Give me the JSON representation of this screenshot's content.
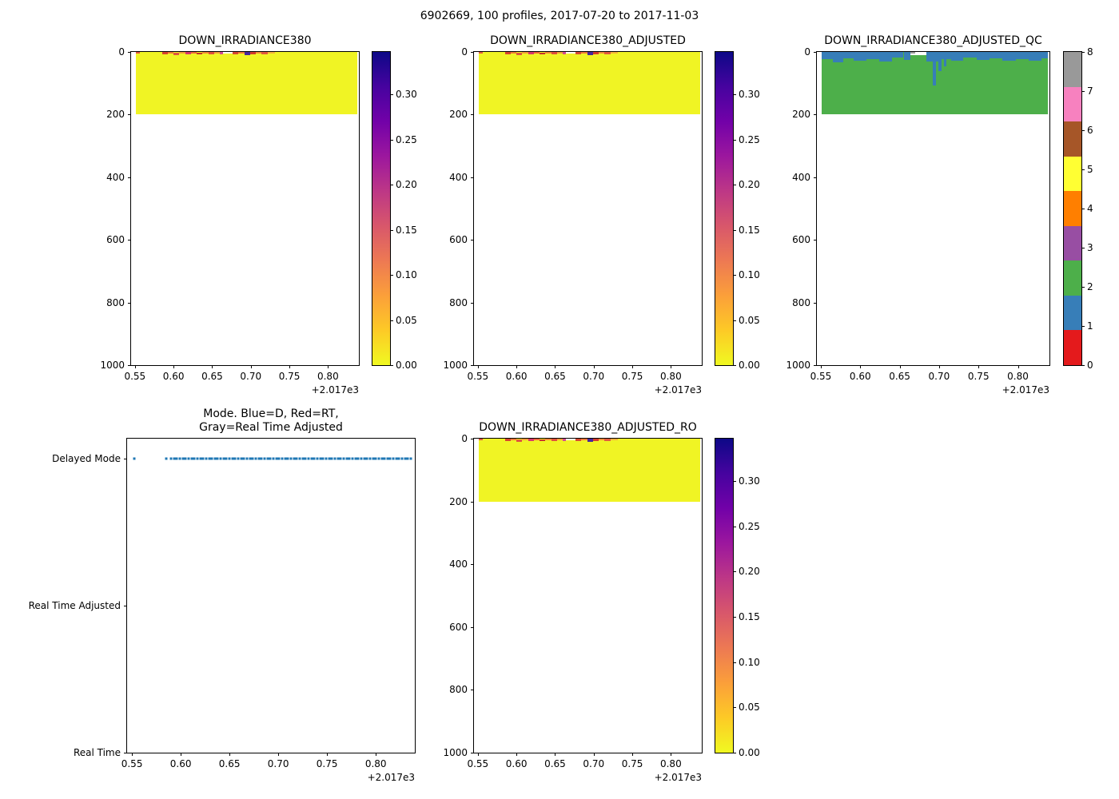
{
  "figure": {
    "title": "6902669, 100 profiles, 2017-07-20 to 2017-11-03"
  },
  "chart_data": [
    {
      "id": "down_irradiance380",
      "type": "heatmap",
      "title": "DOWN_IRRADIANCE380",
      "x": {
        "lim": [
          0.545,
          0.84
        ],
        "ticks": [
          0.55,
          0.6,
          0.65,
          0.7,
          0.75,
          0.8
        ],
        "tick_labels": [
          "0.55",
          "0.60",
          "0.65",
          "0.70",
          "0.75",
          "0.80"
        ],
        "offset": "+2.017e3"
      },
      "y": {
        "lim": [
          0,
          1000
        ],
        "ticks": [
          0,
          200,
          400,
          600,
          800,
          1000
        ],
        "tick_labels": [
          "0",
          "200",
          "400",
          "600",
          "800",
          "1000"
        ],
        "inverted": true
      },
      "layers": [
        [
          0.551,
          0.838,
          0,
          200,
          "#f0f424"
        ],
        [
          0.551,
          0.556,
          0,
          5,
          "#e4583f"
        ],
        [
          0.5855,
          0.5925,
          1,
          8,
          "#d7452f"
        ],
        [
          0.5925,
          0.6,
          0,
          6,
          "#f07d36"
        ],
        [
          0.6,
          0.6075,
          2,
          9,
          "#e05540"
        ],
        [
          0.6075,
          0.615,
          0,
          5,
          "#f4a03a"
        ],
        [
          0.615,
          0.6225,
          1,
          8,
          "#d8386b"
        ],
        [
          0.6225,
          0.63,
          0,
          6,
          "#ef6a3c"
        ],
        [
          0.63,
          0.6375,
          2,
          8,
          "#c9342a"
        ],
        [
          0.6375,
          0.645,
          0,
          5,
          "#f28c3a"
        ],
        [
          0.645,
          0.6525,
          1,
          8,
          "#e0513d"
        ],
        [
          0.6525,
          0.66,
          0,
          6,
          "#f0a23c"
        ],
        [
          0.66,
          0.664,
          1,
          7,
          "#d44c90"
        ],
        [
          0.664,
          0.6765,
          0,
          6,
          "#ffffff"
        ],
        [
          0.6765,
          0.684,
          1,
          8,
          "#d74a32"
        ],
        [
          0.684,
          0.6915,
          0,
          6,
          "#ef7b39"
        ],
        [
          0.6915,
          0.699,
          0,
          10,
          "#46279b"
        ],
        [
          0.699,
          0.7065,
          1,
          8,
          "#d33b2c"
        ],
        [
          0.7065,
          0.714,
          0,
          6,
          "#f2903b"
        ],
        [
          0.714,
          0.7215,
          1,
          7,
          "#e25b3f"
        ],
        [
          0.7215,
          0.731,
          0,
          5,
          "#f6b33c"
        ]
      ],
      "colorbar": {
        "kind": "continuous",
        "vmin": 0,
        "vmax": 0.347,
        "ticks": [
          0.3,
          0.25,
          0.2,
          0.15,
          0.1,
          0.05,
          0
        ],
        "labels": [
          "0.30",
          "0.25",
          "0.20",
          "0.15",
          "0.10",
          "0.05",
          "0.00"
        ],
        "gradient": [
          "#0d0887",
          "#46039f",
          "#7201a8",
          "#9c179e",
          "#bd3786",
          "#d8576b",
          "#ed7953",
          "#fb9f3a",
          "#fdca26",
          "#f0f921"
        ]
      }
    },
    {
      "id": "down_irradiance380_adjusted",
      "type": "heatmap",
      "title": "DOWN_IRRADIANCE380_ADJUSTED",
      "x": {
        "lim": [
          0.545,
          0.84
        ],
        "ticks": [
          0.55,
          0.6,
          0.65,
          0.7,
          0.75,
          0.8
        ],
        "tick_labels": [
          "0.55",
          "0.60",
          "0.65",
          "0.70",
          "0.75",
          "0.80"
        ],
        "offset": "+2.017e3"
      },
      "y": {
        "lim": [
          0,
          1000
        ],
        "ticks": [
          0,
          200,
          400,
          600,
          800,
          1000
        ],
        "tick_labels": [
          "0",
          "200",
          "400",
          "600",
          "800",
          "1000"
        ],
        "inverted": true
      },
      "layers": [
        [
          0.551,
          0.838,
          0,
          200,
          "#f0f424"
        ],
        [
          0.551,
          0.556,
          0,
          5,
          "#e4583f"
        ],
        [
          0.5855,
          0.5925,
          1,
          8,
          "#d7452f"
        ],
        [
          0.5925,
          0.6,
          0,
          6,
          "#f07d36"
        ],
        [
          0.6,
          0.6075,
          2,
          9,
          "#e05540"
        ],
        [
          0.6075,
          0.615,
          0,
          5,
          "#f4a03a"
        ],
        [
          0.615,
          0.6225,
          1,
          8,
          "#d8386b"
        ],
        [
          0.6225,
          0.63,
          0,
          6,
          "#ef6a3c"
        ],
        [
          0.63,
          0.6375,
          2,
          8,
          "#c9342a"
        ],
        [
          0.6375,
          0.645,
          0,
          5,
          "#f28c3a"
        ],
        [
          0.645,
          0.6525,
          1,
          8,
          "#e0513d"
        ],
        [
          0.6525,
          0.66,
          0,
          6,
          "#f0a23c"
        ],
        [
          0.66,
          0.664,
          1,
          7,
          "#d44c90"
        ],
        [
          0.664,
          0.6765,
          0,
          6,
          "#ffffff"
        ],
        [
          0.6765,
          0.684,
          1,
          8,
          "#d74a32"
        ],
        [
          0.684,
          0.6915,
          0,
          6,
          "#ef7b39"
        ],
        [
          0.6915,
          0.699,
          0,
          10,
          "#46279b"
        ],
        [
          0.699,
          0.7065,
          1,
          8,
          "#d33b2c"
        ],
        [
          0.7065,
          0.714,
          0,
          6,
          "#f2903b"
        ],
        [
          0.714,
          0.7215,
          1,
          7,
          "#e25b3f"
        ],
        [
          0.7215,
          0.731,
          0,
          5,
          "#f6b33c"
        ]
      ],
      "colorbar": {
        "kind": "continuous",
        "vmin": 0,
        "vmax": 0.347,
        "ticks": [
          0.3,
          0.25,
          0.2,
          0.15,
          0.1,
          0.05,
          0
        ],
        "labels": [
          "0.30",
          "0.25",
          "0.20",
          "0.15",
          "0.10",
          "0.05",
          "0.00"
        ],
        "gradient": [
          "#0d0887",
          "#46039f",
          "#7201a8",
          "#9c179e",
          "#bd3786",
          "#d8576b",
          "#ed7953",
          "#fb9f3a",
          "#fdca26",
          "#f0f921"
        ]
      }
    },
    {
      "id": "down_irradiance380_adjusted_qc",
      "type": "heatmap",
      "title": "DOWN_IRRADIANCE380_ADJUSTED_QC",
      "x": {
        "lim": [
          0.545,
          0.84
        ],
        "ticks": [
          0.55,
          0.6,
          0.65,
          0.7,
          0.75,
          0.8
        ],
        "tick_labels": [
          "0.55",
          "0.60",
          "0.65",
          "0.70",
          "0.75",
          "0.80"
        ],
        "offset": "+2.017e3"
      },
      "y": {
        "lim": [
          0,
          1000
        ],
        "ticks": [
          0,
          200,
          400,
          600,
          800,
          1000
        ],
        "tick_labels": [
          "0",
          "200",
          "400",
          "600",
          "800",
          "1000"
        ],
        "inverted": true
      },
      "layers": [
        [
          0.551,
          0.838,
          0,
          200,
          "#4daf4a"
        ],
        [
          0.551,
          0.565,
          0,
          24,
          "#377eb8"
        ],
        [
          0.565,
          0.578,
          0,
          32,
          "#377eb8"
        ],
        [
          0.578,
          0.592,
          0,
          20,
          "#377eb8"
        ],
        [
          0.592,
          0.608,
          0,
          28,
          "#377eb8"
        ],
        [
          0.608,
          0.624,
          0,
          22,
          "#377eb8"
        ],
        [
          0.624,
          0.64,
          0,
          30,
          "#377eb8"
        ],
        [
          0.64,
          0.655,
          0,
          18,
          "#377eb8"
        ],
        [
          0.655,
          0.664,
          0,
          26,
          "#377eb8"
        ],
        [
          0.684,
          0.699,
          0,
          30,
          "#377eb8"
        ],
        [
          0.699,
          0.715,
          0,
          24,
          "#377eb8"
        ],
        [
          0.715,
          0.731,
          0,
          28,
          "#377eb8"
        ],
        [
          0.731,
          0.748,
          0,
          18,
          "#377eb8"
        ],
        [
          0.748,
          0.764,
          0,
          26,
          "#377eb8"
        ],
        [
          0.764,
          0.78,
          0,
          20,
          "#377eb8"
        ],
        [
          0.78,
          0.797,
          0,
          28,
          "#377eb8"
        ],
        [
          0.797,
          0.814,
          0,
          22,
          "#377eb8"
        ],
        [
          0.814,
          0.83,
          0,
          28,
          "#377eb8"
        ],
        [
          0.83,
          0.838,
          0,
          20,
          "#377eb8"
        ],
        [
          0.6915,
          0.6965,
          0,
          108,
          "#377eb8"
        ],
        [
          0.699,
          0.7035,
          0,
          62,
          "#377eb8"
        ],
        [
          0.706,
          0.709,
          0,
          46,
          "#377eb8"
        ],
        [
          0.664,
          0.684,
          0,
          10,
          "#ffffff"
        ],
        [
          0.664,
          0.67,
          0,
          4,
          "#9b9b9b"
        ]
      ],
      "colorbar": {
        "kind": "discrete",
        "vmin": 0,
        "vmax": 8,
        "colors": [
          "#e41a1c",
          "#377eb8",
          "#4daf4a",
          "#984ea3",
          "#ff7f00",
          "#ffff33",
          "#a65628",
          "#f781bf",
          "#999999"
        ],
        "ticks": [
          0,
          1,
          2,
          3,
          4,
          5,
          6,
          7,
          8
        ],
        "labels": [
          "0",
          "1",
          "2",
          "3",
          "4",
          "5",
          "6",
          "7",
          "8"
        ]
      }
    },
    {
      "id": "mode",
      "type": "scatter",
      "title_lines": [
        "Mode. Blue=D, Red=RT,",
        "Gray=Real Time Adjusted"
      ],
      "x": {
        "lim": [
          0.545,
          0.84
        ],
        "ticks": [
          0.55,
          0.6,
          0.65,
          0.7,
          0.75,
          0.8
        ],
        "tick_labels": [
          "0.55",
          "0.60",
          "0.65",
          "0.70",
          "0.75",
          "0.80"
        ],
        "offset": "+2.017e3"
      },
      "y": {
        "categories": [
          "Delayed Mode",
          "Real Time Adjusted",
          "Real Time"
        ],
        "fracs": [
          0.064,
          0.532,
          1.0
        ]
      },
      "series": [
        {
          "name": "Delayed Mode",
          "color": "#1f77b4",
          "y_frac": 0.064,
          "x_runs": [
            [
              0.552
            ],
            [
              0.5855
            ],
            [
              0.59,
              0.838,
              0.003
            ]
          ]
        }
      ]
    },
    {
      "id": "down_irradiance380_adjusted_ro",
      "type": "heatmap",
      "title": "DOWN_IRRADIANCE380_ADJUSTED_RO",
      "x": {
        "lim": [
          0.545,
          0.84
        ],
        "ticks": [
          0.55,
          0.6,
          0.65,
          0.7,
          0.75,
          0.8
        ],
        "tick_labels": [
          "0.55",
          "0.60",
          "0.65",
          "0.70",
          "0.75",
          "0.80"
        ],
        "offset": "+2.017e3"
      },
      "y": {
        "lim": [
          0,
          1000
        ],
        "ticks": [
          0,
          200,
          400,
          600,
          800,
          1000
        ],
        "tick_labels": [
          "0",
          "200",
          "400",
          "600",
          "800",
          "1000"
        ],
        "inverted": true
      },
      "layers": [
        [
          0.551,
          0.838,
          0,
          200,
          "#f0f424"
        ],
        [
          0.551,
          0.556,
          0,
          5,
          "#e4583f"
        ],
        [
          0.5855,
          0.5925,
          1,
          8,
          "#d7452f"
        ],
        [
          0.5925,
          0.6,
          0,
          6,
          "#f07d36"
        ],
        [
          0.6,
          0.6075,
          2,
          9,
          "#e05540"
        ],
        [
          0.6075,
          0.615,
          0,
          5,
          "#f4a03a"
        ],
        [
          0.615,
          0.6225,
          1,
          8,
          "#d8386b"
        ],
        [
          0.6225,
          0.63,
          0,
          6,
          "#ef6a3c"
        ],
        [
          0.63,
          0.6375,
          2,
          8,
          "#c9342a"
        ],
        [
          0.6375,
          0.645,
          0,
          5,
          "#f28c3a"
        ],
        [
          0.645,
          0.6525,
          1,
          8,
          "#e0513d"
        ],
        [
          0.6525,
          0.66,
          0,
          6,
          "#f0a23c"
        ],
        [
          0.66,
          0.664,
          1,
          7,
          "#d44c90"
        ],
        [
          0.664,
          0.6765,
          0,
          6,
          "#ffffff"
        ],
        [
          0.6765,
          0.684,
          1,
          8,
          "#d74a32"
        ],
        [
          0.684,
          0.6915,
          0,
          6,
          "#ef7b39"
        ],
        [
          0.6915,
          0.699,
          0,
          10,
          "#46279b"
        ],
        [
          0.699,
          0.7065,
          1,
          8,
          "#d33b2c"
        ],
        [
          0.7065,
          0.714,
          0,
          6,
          "#f2903b"
        ],
        [
          0.714,
          0.7215,
          1,
          7,
          "#e25b3f"
        ],
        [
          0.7215,
          0.731,
          0,
          5,
          "#f6b33c"
        ]
      ],
      "colorbar": {
        "kind": "continuous",
        "vmin": 0,
        "vmax": 0.347,
        "ticks": [
          0.3,
          0.25,
          0.2,
          0.15,
          0.1,
          0.05,
          0
        ],
        "labels": [
          "0.30",
          "0.25",
          "0.20",
          "0.15",
          "0.10",
          "0.05",
          "0.00"
        ],
        "gradient": [
          "#0d0887",
          "#46039f",
          "#7201a8",
          "#9c179e",
          "#bd3786",
          "#d8576b",
          "#ed7953",
          "#fb9f3a",
          "#fdca26",
          "#f0f921"
        ]
      }
    }
  ]
}
